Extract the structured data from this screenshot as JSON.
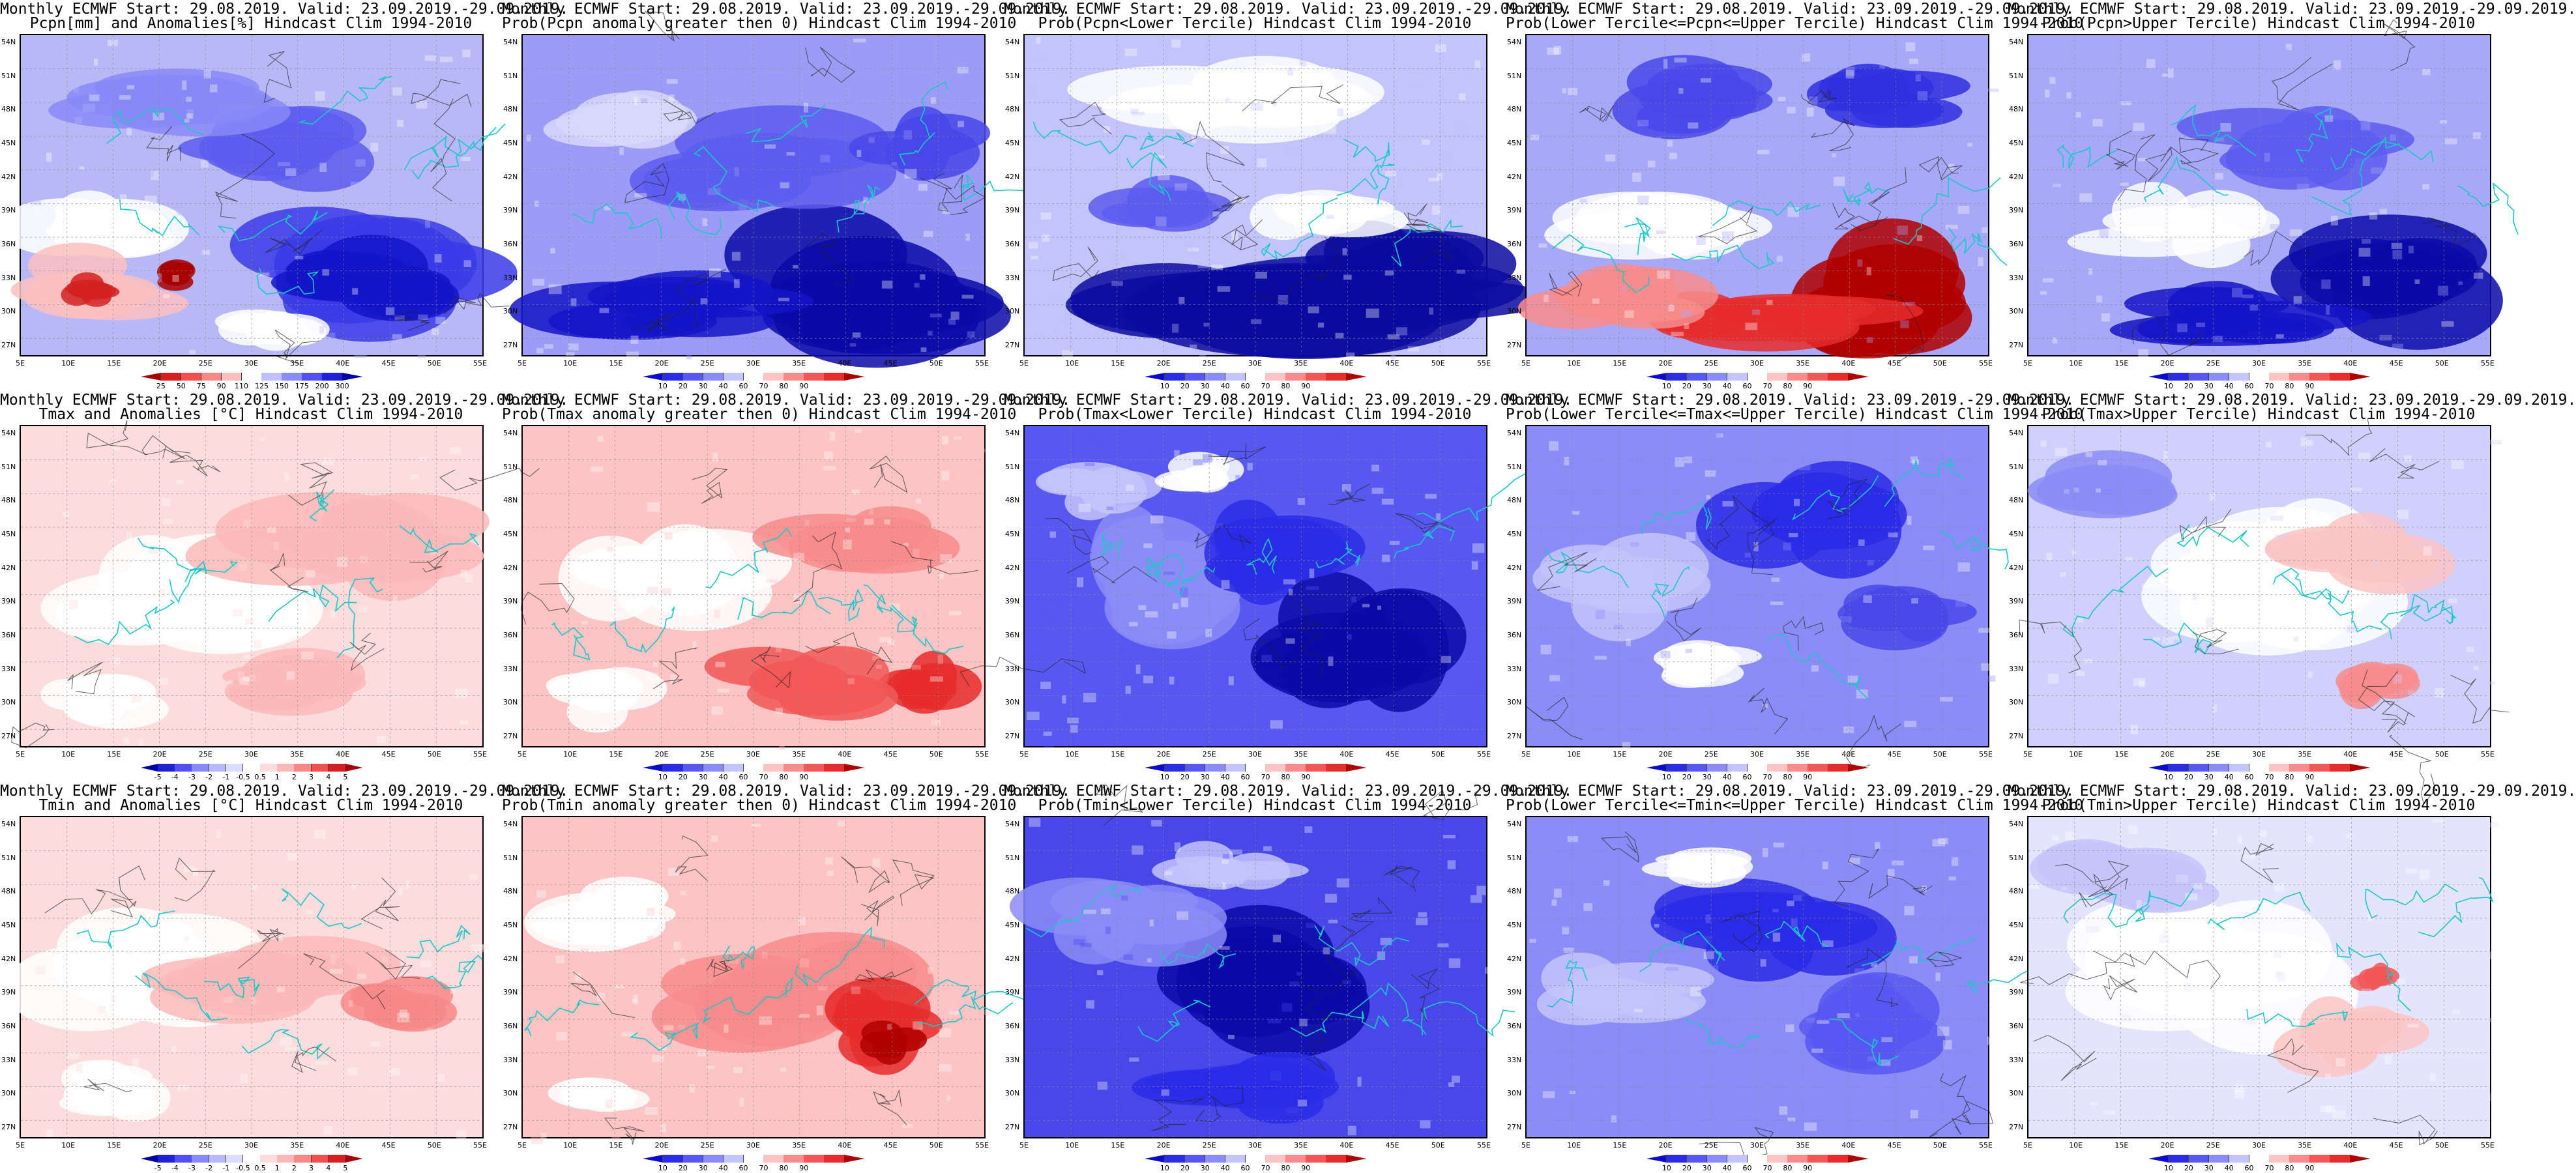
{
  "legend_scales": {
    "probability": {
      "labels": [
        "10",
        "20",
        "30",
        "40",
        "60",
        "70",
        "80",
        "90"
      ],
      "colors": [
        "#0a0ad0",
        "#2c2ce6",
        "#5757f2",
        "#8c8cf8",
        "#c4c4fc",
        "#ffffff",
        "#fcc4c4",
        "#f88c8c",
        "#f25757",
        "#e62c2c",
        "#b00000"
      ]
    },
    "pcpn_anomaly": {
      "labels": [
        "25",
        "50",
        "75",
        "90",
        "110",
        "125",
        "150",
        "175",
        "200",
        "300"
      ],
      "colors": [
        "#a80000",
        "#d42020",
        "#f05050",
        "#f88888",
        "#fcc0c0",
        "#ffffff",
        "#c0c0fc",
        "#8c8cf8",
        "#5050f0",
        "#2020d4",
        "#0000a8"
      ]
    },
    "temp_anomaly": {
      "labels": [
        "-5",
        "-4",
        "-3",
        "-2",
        "-1",
        "-0.5",
        "0.5",
        "1",
        "2",
        "3",
        "4",
        "5"
      ],
      "colors": [
        "#0000a8",
        "#2020d4",
        "#5050f0",
        "#8888f8",
        "#b8b8fc",
        "#dcdcfe",
        "#ffffff",
        "#fcdcdc",
        "#fcb8b8",
        "#f88888",
        "#f05050",
        "#d42020",
        "#a80000"
      ]
    }
  },
  "axis": {
    "lat_ticks": [
      "54N",
      "51N",
      "48N",
      "45N",
      "42N",
      "39N",
      "36N",
      "33N",
      "30N",
      "27N"
    ],
    "lon_ticks": [
      "5E",
      "10E",
      "15E",
      "20E",
      "25E",
      "30E",
      "35E",
      "40E",
      "45E",
      "50E",
      "55E"
    ]
  },
  "panels": [
    {
      "id": "pcpn-anomaly",
      "line1": "Monthly ECMWF Start: 29.08.2019. Valid: 23.09.2019.-29.09.2019.",
      "line2": "Pcpn[mm] and Anomalies[%] Hindcast Clim 1994-2010",
      "legend": "pcpn_anomaly",
      "pattern": {
        "base": "#b8b8f6",
        "blobs": [
          [
            "#3a3ae8",
            0.72,
            0.74,
            0.32,
            0.2
          ],
          [
            "#1414c8",
            0.78,
            0.78,
            0.25,
            0.15
          ],
          [
            "#5c5cf0",
            0.6,
            0.35,
            0.22,
            0.12
          ],
          [
            "#ffffff",
            0.15,
            0.6,
            0.2,
            0.12
          ],
          [
            "#fcc0c0",
            0.2,
            0.78,
            0.22,
            0.14
          ],
          [
            "#d42020",
            0.15,
            0.8,
            0.08,
            0.06
          ],
          [
            "#a80000",
            0.35,
            0.75,
            0.05,
            0.05
          ],
          [
            "#8888f8",
            0.3,
            0.2,
            0.25,
            0.1
          ],
          [
            "#ffffff",
            0.55,
            0.9,
            0.12,
            0.08
          ]
        ]
      }
    },
    {
      "id": "pcpn-prob-anom",
      "line1": "Monthly ECMWF Start: 29.08.2019. Valid: 23.09.2019.-29.09.2019.",
      "line2": "Prob(Pcpn anomaly greater then 0) Hindcast Clim 1994-2010",
      "legend": "probability",
      "pattern": {
        "base": "#9c9cf6",
        "blobs": [
          [
            "#0a0aa8",
            0.72,
            0.78,
            0.35,
            0.22
          ],
          [
            "#1414c8",
            0.3,
            0.85,
            0.3,
            0.12
          ],
          [
            "#5c5cf0",
            0.5,
            0.4,
            0.3,
            0.15
          ],
          [
            "#d8d8fc",
            0.2,
            0.3,
            0.2,
            0.12
          ],
          [
            "#4848ea",
            0.85,
            0.35,
            0.15,
            0.12
          ]
        ]
      }
    },
    {
      "id": "pcpn-lower-tercile",
      "line1": "Monthly ECMWF Start: 29.08.2019. Valid: 23.09.2019.-29.09.2019.",
      "line2": "Prob(Pcpn<Lower Tercile) Hindcast Clim 1994-2010",
      "legend": "probability",
      "pattern": {
        "base": "#c4c4fc",
        "blobs": [
          [
            "#0a0aa0",
            0.5,
            0.85,
            0.6,
            0.2
          ],
          [
            "#0a0aa0",
            0.82,
            0.75,
            0.25,
            0.2
          ],
          [
            "#ffffff",
            0.45,
            0.2,
            0.3,
            0.12
          ],
          [
            "#ffffff",
            0.65,
            0.55,
            0.2,
            0.1
          ],
          [
            "#5c5cf0",
            0.3,
            0.55,
            0.15,
            0.1
          ]
        ]
      }
    },
    {
      "id": "pcpn-middle-tercile",
      "line1": "Monthly ECMWF Start: 29.08.2019. Valid: 23.09.2019.-29.09.2019.",
      "line2": "Prob(Lower Tercile<=Pcpn<=Upper Tercile) Hindcast Clim 1994-2010",
      "legend": "probability",
      "pattern": {
        "base": "#a8a8f8",
        "blobs": [
          [
            "#b00000",
            0.75,
            0.8,
            0.22,
            0.22
          ],
          [
            "#e62c2c",
            0.5,
            0.9,
            0.3,
            0.1
          ],
          [
            "#f88c8c",
            0.2,
            0.85,
            0.22,
            0.12
          ],
          [
            "#ffffff",
            0.3,
            0.6,
            0.25,
            0.12
          ],
          [
            "#4848ea",
            0.35,
            0.2,
            0.2,
            0.12
          ],
          [
            "#3030e0",
            0.75,
            0.2,
            0.2,
            0.1
          ]
        ]
      }
    },
    {
      "id": "pcpn-upper-tercile",
      "line1": "Monthly ECMWF Start: 29.08.2019. Valid: 23.09.2019.-29.09.2019.",
      "line2": "Prob(Pcpn>Upper Tercile) Hindcast Clim 1994-2010",
      "legend": "probability",
      "pattern": {
        "base": "#a8a8f8",
        "blobs": [
          [
            "#0a0aa8",
            0.78,
            0.78,
            0.28,
            0.22
          ],
          [
            "#1414c8",
            0.4,
            0.88,
            0.3,
            0.1
          ],
          [
            "#ffffff",
            0.35,
            0.6,
            0.22,
            0.12
          ],
          [
            "#5c5cf0",
            0.6,
            0.35,
            0.25,
            0.15
          ]
        ]
      }
    },
    {
      "id": "tmax-anomaly",
      "line1": "Monthly ECMWF Start: 29.08.2019. Valid: 23.09.2019.-29.09.2019.",
      "line2": "Tmax and Anomalies [°C] Hindcast Clim 1994-2010",
      "legend": "temp_anomaly",
      "pattern": {
        "base": "#fcdcdc",
        "blobs": [
          [
            "#ffffff",
            0.35,
            0.5,
            0.3,
            0.2
          ],
          [
            "#fcb8b8",
            0.7,
            0.35,
            0.3,
            0.18
          ],
          [
            "#fcb8b8",
            0.55,
            0.8,
            0.2,
            0.12
          ],
          [
            "#ffffff",
            0.15,
            0.85,
            0.15,
            0.1
          ]
        ]
      }
    },
    {
      "id": "tmax-prob-anom",
      "line1": "Monthly ECMWF Start: 29.08.2019. Valid: 23.09.2019.-29.09.2019.",
      "line2": "Prob(Tmax anomaly greater then 0) Hindcast Clim 1994-2010",
      "legend": "probability",
      "pattern": {
        "base": "#fcc4c4",
        "blobs": [
          [
            "#ffffff",
            0.3,
            0.45,
            0.25,
            0.18
          ],
          [
            "#f88c8c",
            0.75,
            0.35,
            0.22,
            0.15
          ],
          [
            "#e62c2c",
            0.85,
            0.8,
            0.12,
            0.12
          ],
          [
            "#f25757",
            0.6,
            0.8,
            0.2,
            0.12
          ],
          [
            "#ffffff",
            0.15,
            0.85,
            0.15,
            0.1
          ]
        ]
      }
    },
    {
      "id": "tmax-lower-tercile",
      "line1": "Monthly ECMWF Start: 29.08.2019. Valid: 23.09.2019.-29.09.2019.",
      "line2": "Prob(Tmax<Lower Tercile) Hindcast Clim 1994-2010",
      "legend": "probability",
      "pattern": {
        "base": "#5757f2",
        "blobs": [
          [
            "#8c8cf8",
            0.25,
            0.5,
            0.22,
            0.22
          ],
          [
            "#0a0aa8",
            0.75,
            0.7,
            0.25,
            0.25
          ],
          [
            "#2c2ce6",
            0.5,
            0.4,
            0.2,
            0.15
          ],
          [
            "#c4c4fc",
            0.15,
            0.2,
            0.15,
            0.1
          ],
          [
            "#ffffff",
            0.4,
            0.15,
            0.1,
            0.06
          ]
        ]
      }
    },
    {
      "id": "tmax-middle-tercile",
      "line1": "Monthly ECMWF Start: 29.08.2019. Valid: 23.09.2019.-29.09.2019.",
      "line2": "Prob(Lower Tercile<=Tmax<=Upper Tercile) Hindcast Clim 1994-2010",
      "legend": "probability",
      "pattern": {
        "base": "#8c8cf8",
        "blobs": [
          [
            "#2c2ce6",
            0.6,
            0.3,
            0.2,
            0.2
          ],
          [
            "#c4c4fc",
            0.2,
            0.5,
            0.2,
            0.15
          ],
          [
            "#4848ea",
            0.8,
            0.6,
            0.15,
            0.12
          ],
          [
            "#ffffff",
            0.4,
            0.75,
            0.12,
            0.08
          ]
        ]
      }
    },
    {
      "id": "tmax-upper-tercile",
      "line1": "Monthly ECMWF Start: 29.08.2019. Valid: 23.09.2019.-29.09.2019.",
      "line2": "Prob(Tmax>Upper Tercile) Hindcast Clim 1994-2010",
      "legend": "probability",
      "pattern": {
        "base": "#d0d0fc",
        "blobs": [
          [
            "#ffffff",
            0.5,
            0.5,
            0.3,
            0.25
          ],
          [
            "#fcc4c4",
            0.7,
            0.4,
            0.2,
            0.12
          ],
          [
            "#f88c8c",
            0.75,
            0.8,
            0.1,
            0.08
          ],
          [
            "#8c8cf8",
            0.2,
            0.2,
            0.2,
            0.12
          ]
        ]
      }
    },
    {
      "id": "tmin-anomaly",
      "line1": "Monthly ECMWF Start: 29.08.2019. Valid: 23.09.2019.-29.09.2019.",
      "line2": "Tmin and Anomalies [°C] Hindcast Clim 1994-2010",
      "legend": "temp_anomaly",
      "pattern": {
        "base": "#fcdcdc",
        "blobs": [
          [
            "#ffffff",
            0.25,
            0.45,
            0.25,
            0.2
          ],
          [
            "#fcb8b8",
            0.55,
            0.5,
            0.25,
            0.15
          ],
          [
            "#f88888",
            0.8,
            0.6,
            0.12,
            0.1
          ],
          [
            "#ffffff",
            0.2,
            0.85,
            0.15,
            0.1
          ]
        ]
      }
    },
    {
      "id": "tmin-prob-anom",
      "line1": "Monthly ECMWF Start: 29.08.2019. Valid: 23.09.2019.-29.09.2019.",
      "line2": "Prob(Tmin anomaly greater then 0) Hindcast Clim 1994-2010",
      "legend": "probability",
      "pattern": {
        "base": "#fcc4c4",
        "blobs": [
          [
            "#f88c8c",
            0.6,
            0.55,
            0.28,
            0.2
          ],
          [
            "#e62c2c",
            0.78,
            0.65,
            0.15,
            0.15
          ],
          [
            "#b00000",
            0.8,
            0.7,
            0.07,
            0.07
          ],
          [
            "#ffffff",
            0.2,
            0.3,
            0.2,
            0.12
          ],
          [
            "#ffffff",
            0.15,
            0.85,
            0.12,
            0.08
          ]
        ]
      }
    },
    {
      "id": "tmin-lower-tercile",
      "line1": "Monthly ECMWF Start: 29.08.2019. Valid: 23.09.2019.-29.09.2019.",
      "line2": "Prob(Tmin<Lower Tercile) Hindcast Clim 1994-2010",
      "legend": "probability",
      "pattern": {
        "base": "#4848ea",
        "blobs": [
          [
            "#0a0aa8",
            0.6,
            0.5,
            0.28,
            0.25
          ],
          [
            "#8c8cf8",
            0.2,
            0.3,
            0.2,
            0.15
          ],
          [
            "#c4c4fc",
            0.45,
            0.15,
            0.15,
            0.08
          ],
          [
            "#2c2ce6",
            0.5,
            0.85,
            0.25,
            0.1
          ]
        ]
      }
    },
    {
      "id": "tmin-middle-tercile",
      "line1": "Monthly ECMWF Start: 29.08.2019. Valid: 23.09.2019.-29.09.2019.",
      "line2": "Prob(Lower Tercile<=Tmin<=Upper Tercile) Hindcast Clim 1994-2010",
      "legend": "probability",
      "pattern": {
        "base": "#8c8cf8",
        "blobs": [
          [
            "#2c2ce6",
            0.55,
            0.35,
            0.25,
            0.18
          ],
          [
            "#5757f2",
            0.75,
            0.65,
            0.2,
            0.15
          ],
          [
            "#c4c4fc",
            0.2,
            0.55,
            0.2,
            0.12
          ],
          [
            "#ffffff",
            0.35,
            0.15,
            0.12,
            0.06
          ]
        ]
      }
    },
    {
      "id": "tmin-upper-tercile",
      "line1": "Monthly ECMWF Start: 29.08.2019. Valid: 23.09.2019.-29.09.2019.",
      "line2": "Prob(Tmin>Upper Tercile) Hindcast Clim 1994-2010",
      "legend": "probability",
      "pattern": {
        "base": "#e4e4fc",
        "blobs": [
          [
            "#ffffff",
            0.4,
            0.5,
            0.3,
            0.25
          ],
          [
            "#fcc4c4",
            0.7,
            0.7,
            0.15,
            0.12
          ],
          [
            "#f25757",
            0.75,
            0.5,
            0.05,
            0.05
          ],
          [
            "#c4c4fc",
            0.2,
            0.2,
            0.2,
            0.12
          ]
        ]
      }
    }
  ]
}
